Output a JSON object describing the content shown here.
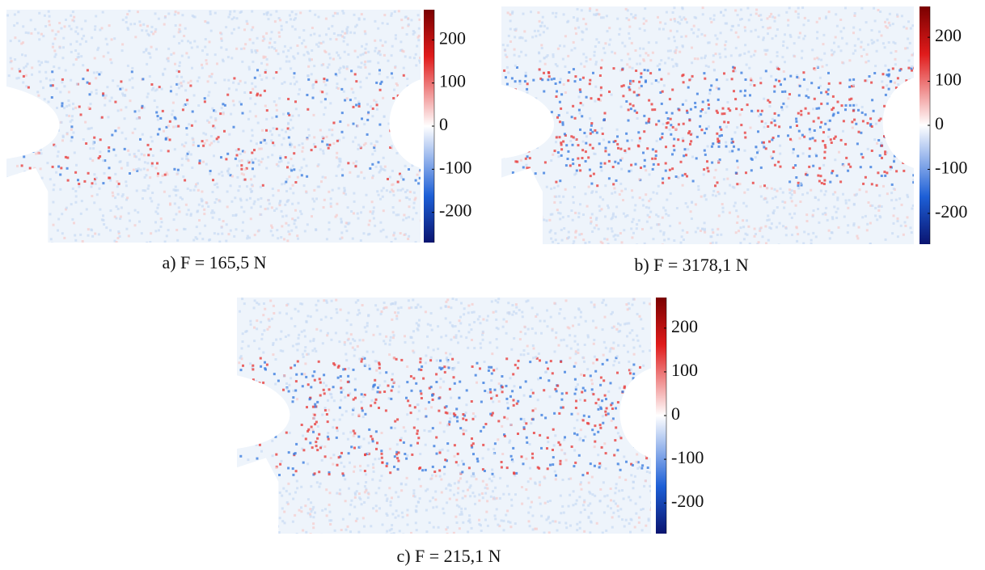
{
  "panels": [
    {
      "caption": "a) F = 165,5 N",
      "colorbar": {
        "lim": [
          -270,
          270
        ],
        "ticks": [
          200,
          100,
          0,
          -100,
          -200
        ]
      }
    },
    {
      "caption": "b) F = 3178,1 N",
      "colorbar": {
        "lim": [
          -270,
          270
        ],
        "ticks": [
          200,
          100,
          0,
          -100,
          -200
        ]
      }
    },
    {
      "caption": "c) F = 215,1 N",
      "colorbar": {
        "lim": [
          -270,
          270
        ],
        "ticks": [
          200,
          100,
          0,
          -100,
          -200
        ]
      }
    }
  ]
}
